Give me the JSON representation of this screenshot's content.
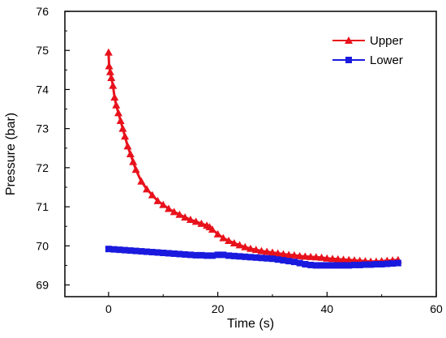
{
  "chart_data": {
    "type": "line",
    "title": "",
    "xlabel": "Time (s)",
    "ylabel": "Pressure (bar)",
    "xlim": [
      -8,
      60
    ],
    "ylim": [
      68.7,
      76
    ],
    "xticks": [
      0,
      20,
      40,
      60
    ],
    "yticks": [
      69,
      70,
      71,
      72,
      73,
      74,
      75,
      76
    ],
    "grid": false,
    "legend_position": "top-right",
    "series": [
      {
        "name": "Upper",
        "color": "#e8121c",
        "marker": "triangle",
        "x": [
          0.0,
          0.1,
          0.3,
          0.5,
          0.8,
          1.1,
          1.4,
          1.8,
          2.2,
          2.6,
          3.0,
          3.5,
          4.0,
          4.5,
          5.0,
          6.0,
          7.0,
          8.0,
          9.0,
          10.0,
          11.0,
          12.0,
          13.0,
          14.0,
          15.0,
          16.0,
          17.0,
          18.0,
          18.5,
          19.0,
          20.0,
          21.0,
          22.0,
          23.0,
          24.0,
          25.0,
          26.0,
          27.0,
          28.0,
          29.0,
          30.0,
          31.0,
          32.0,
          33.0,
          34.0,
          35.0,
          36.0,
          37.0,
          38.0,
          39.0,
          40.0,
          41.0,
          42.0,
          43.0,
          44.0,
          45.0,
          46.0,
          47.0,
          48.0,
          49.0,
          50.0,
          51.0,
          52.0,
          53.0
        ],
        "y": [
          74.95,
          74.6,
          74.45,
          74.3,
          74.1,
          73.8,
          73.6,
          73.4,
          73.2,
          73.0,
          72.8,
          72.55,
          72.35,
          72.15,
          71.95,
          71.65,
          71.45,
          71.3,
          71.15,
          71.05,
          70.95,
          70.87,
          70.8,
          70.73,
          70.67,
          70.62,
          70.57,
          70.52,
          70.48,
          70.42,
          70.3,
          70.2,
          70.13,
          70.07,
          70.02,
          69.97,
          69.93,
          69.9,
          69.87,
          69.85,
          69.83,
          69.81,
          69.79,
          69.77,
          69.76,
          69.74,
          69.73,
          69.72,
          69.71,
          69.7,
          69.68,
          69.67,
          69.66,
          69.65,
          69.64,
          69.63,
          69.62,
          69.61,
          69.6,
          69.6,
          69.61,
          69.62,
          69.63,
          69.64
        ]
      },
      {
        "name": "Lower",
        "color": "#1a1adf",
        "marker": "square",
        "x": [
          0.0,
          1.0,
          2.0,
          3.0,
          4.0,
          5.0,
          6.0,
          7.0,
          8.0,
          9.0,
          10.0,
          11.0,
          12.0,
          13.0,
          14.0,
          15.0,
          16.0,
          17.0,
          18.0,
          19.0,
          20.0,
          21.0,
          22.0,
          23.0,
          24.0,
          25.0,
          26.0,
          27.0,
          28.0,
          29.0,
          30.0,
          31.0,
          32.0,
          33.0,
          34.0,
          35.0,
          36.0,
          37.0,
          38.0,
          39.0,
          40.0,
          41.0,
          42.0,
          43.0,
          44.0,
          45.0,
          46.0,
          47.0,
          48.0,
          49.0,
          50.0,
          51.0,
          52.0,
          53.0
        ],
        "y": [
          69.92,
          69.91,
          69.9,
          69.89,
          69.88,
          69.87,
          69.86,
          69.85,
          69.84,
          69.83,
          69.82,
          69.81,
          69.8,
          69.79,
          69.78,
          69.77,
          69.76,
          69.76,
          69.75,
          69.75,
          69.77,
          69.77,
          69.75,
          69.74,
          69.73,
          69.72,
          69.71,
          69.7,
          69.69,
          69.68,
          69.67,
          69.65,
          69.63,
          69.61,
          69.59,
          69.56,
          69.53,
          69.51,
          69.5,
          69.5,
          69.5,
          69.5,
          69.5,
          69.5,
          69.5,
          69.51,
          69.51,
          69.52,
          69.52,
          69.53,
          69.53,
          69.54,
          69.55,
          69.56
        ]
      }
    ]
  }
}
